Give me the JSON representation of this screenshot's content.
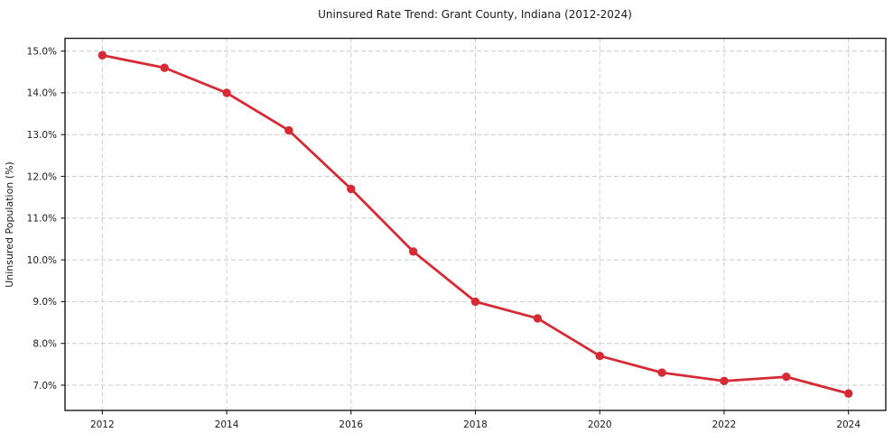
{
  "chart_data": {
    "type": "line",
    "title": "Uninsured Rate Trend: Grant County, Indiana (2012-2024)",
    "xlabel": "",
    "ylabel": "Uninsured Population (%)",
    "x": [
      2012,
      2013,
      2014,
      2015,
      2016,
      2017,
      2018,
      2019,
      2020,
      2021,
      2022,
      2023,
      2024
    ],
    "values": [
      14.9,
      14.6,
      14.0,
      13.1,
      11.7,
      10.2,
      9.0,
      8.6,
      7.7,
      7.3,
      7.1,
      7.2,
      6.8
    ],
    "xlim": [
      2011.4,
      2024.6
    ],
    "ylim": [
      6.395,
      15.305
    ],
    "xticks": [
      2012,
      2014,
      2016,
      2018,
      2020,
      2022,
      2024
    ],
    "xtick_labels": [
      "2012",
      "2014",
      "2016",
      "2018",
      "2020",
      "2022",
      "2024"
    ],
    "yticks": [
      7,
      8,
      9,
      10,
      11,
      12,
      13,
      14,
      15
    ],
    "ytick_labels": [
      "7.0%",
      "8.0%",
      "9.0%",
      "10.0%",
      "11.0%",
      "12.0%",
      "13.0%",
      "14.0%",
      "15.0%"
    ],
    "grid": true,
    "grid_style": "dashed",
    "legend_position": "none",
    "line_color": "#d62b35",
    "grid_color": "#cccccc",
    "axis_color": "#1a1a1a",
    "background_color": "#ffffff",
    "marker": "circle"
  }
}
